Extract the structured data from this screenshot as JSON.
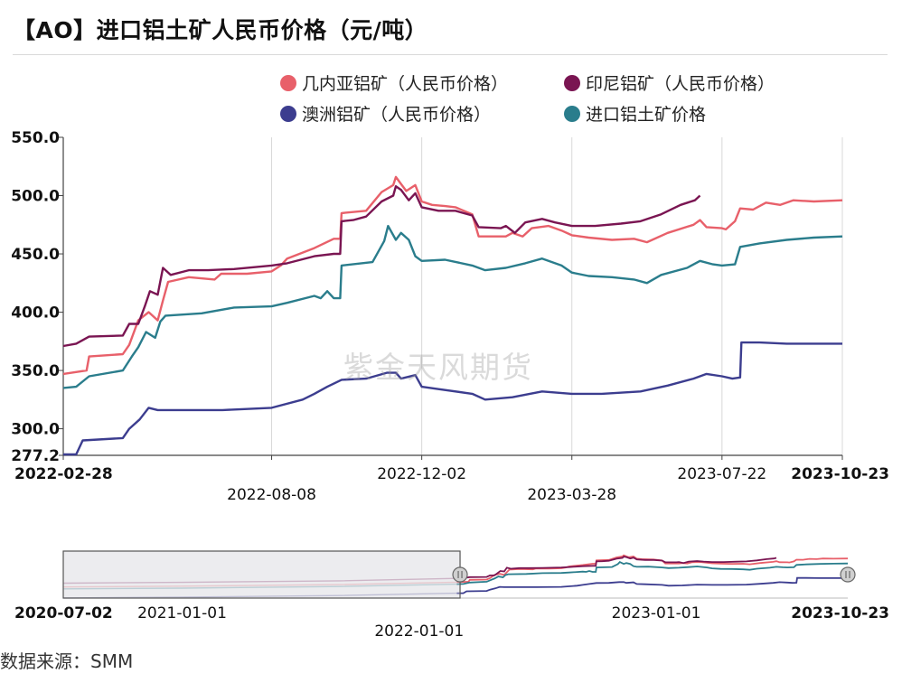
{
  "title": "【AO】进口铝土矿人民币价格（元/吨）",
  "watermark": "紫金天风期货",
  "source": "数据来源：SMM",
  "colors": {
    "guinea": "#e8606a",
    "indonesia": "#7a1552",
    "australia": "#3c3d8f",
    "import": "#2a7d8c",
    "grid": "#d8d8d8",
    "navigator_border": "#555555"
  },
  "legend": [
    {
      "name": "几内亚铝矿（人民币价格）",
      "color": "#e8606a"
    },
    {
      "name": "印尼铝矿（人民币价格）",
      "color": "#7a1552"
    },
    {
      "name": "澳洲铝矿（人民币价格）",
      "color": "#3c3d8f"
    },
    {
      "name": "进口铝土矿价格",
      "color": "#2a7d8c"
    }
  ],
  "chart_data": {
    "type": "line",
    "title": "【AO】进口铝土矿人民币价格（元/吨）",
    "xlabel": "",
    "ylabel": "",
    "x_range": [
      "2022-02-28",
      "2023-10-23"
    ],
    "ylim": [
      277.2,
      550.0
    ],
    "y_ticks": [
      "550.0",
      "500.0",
      "450.0",
      "400.0",
      "350.0",
      "300.0",
      "277.2"
    ],
    "x_ticks_row1": [
      "2022-02-28",
      "2022-12-02",
      "2023-07-22",
      "2023-10-23"
    ],
    "x_ticks_row2": [
      "2022-08-08",
      "2023-03-28"
    ],
    "grid": "vertical",
    "legend_position": "top",
    "series": [
      {
        "name": "几内亚铝矿（人民币价格）",
        "color": "#e8606a",
        "points": [
          [
            "2022-02-28",
            347
          ],
          [
            "2022-03-18",
            350
          ],
          [
            "2022-03-20",
            362
          ],
          [
            "2022-04-15",
            364
          ],
          [
            "2022-04-20",
            372
          ],
          [
            "2022-04-27",
            393
          ],
          [
            "2022-05-05",
            400
          ],
          [
            "2022-05-12",
            393
          ],
          [
            "2022-05-16",
            410
          ],
          [
            "2022-05-20",
            426
          ],
          [
            "2022-06-05",
            430
          ],
          [
            "2022-06-25",
            428
          ],
          [
            "2022-06-30",
            433
          ],
          [
            "2022-07-20",
            433
          ],
          [
            "2022-08-08",
            435
          ],
          [
            "2022-08-15",
            440
          ],
          [
            "2022-08-20",
            446
          ],
          [
            "2022-09-10",
            455
          ],
          [
            "2022-09-25",
            463
          ],
          [
            "2022-09-30",
            463
          ],
          [
            "2022-10-01",
            485
          ],
          [
            "2022-10-20",
            487
          ],
          [
            "2022-11-01",
            503
          ],
          [
            "2022-11-10",
            509
          ],
          [
            "2022-11-12",
            516
          ],
          [
            "2022-11-16",
            510
          ],
          [
            "2022-11-20",
            504
          ],
          [
            "2022-11-27",
            509
          ],
          [
            "2022-12-02",
            495
          ],
          [
            "2022-12-10",
            492
          ],
          [
            "2022-12-20",
            491
          ],
          [
            "2022-12-28",
            490
          ],
          [
            "2023-01-10",
            484
          ],
          [
            "2023-01-15",
            465
          ],
          [
            "2023-02-05",
            465
          ],
          [
            "2023-02-10",
            468
          ],
          [
            "2023-02-18",
            465
          ],
          [
            "2023-02-25",
            472
          ],
          [
            "2023-03-10",
            474
          ],
          [
            "2023-03-20",
            470
          ],
          [
            "2023-03-28",
            466
          ],
          [
            "2023-04-10",
            464
          ],
          [
            "2023-04-28",
            462
          ],
          [
            "2023-05-15",
            463
          ],
          [
            "2023-05-25",
            460
          ],
          [
            "2023-06-10",
            468
          ],
          [
            "2023-06-30",
            475
          ],
          [
            "2023-07-05",
            479
          ],
          [
            "2023-07-10",
            473
          ],
          [
            "2023-07-22",
            472
          ],
          [
            "2023-07-25",
            471
          ],
          [
            "2023-08-01",
            478
          ],
          [
            "2023-08-05",
            489
          ],
          [
            "2023-08-15",
            488
          ],
          [
            "2023-08-25",
            494
          ],
          [
            "2023-09-05",
            492
          ],
          [
            "2023-09-15",
            496
          ],
          [
            "2023-10-01",
            495
          ],
          [
            "2023-10-23",
            496
          ]
        ]
      },
      {
        "name": "印尼铝矿（人民币价格）",
        "color": "#7a1552",
        "points": [
          [
            "2022-02-28",
            371
          ],
          [
            "2022-03-10",
            373
          ],
          [
            "2022-03-20",
            379
          ],
          [
            "2022-04-15",
            380
          ],
          [
            "2022-04-20",
            390
          ],
          [
            "2022-04-27",
            390
          ],
          [
            "2022-05-02",
            405
          ],
          [
            "2022-05-06",
            418
          ],
          [
            "2022-05-12",
            415
          ],
          [
            "2022-05-16",
            438
          ],
          [
            "2022-05-22",
            432
          ],
          [
            "2022-06-05",
            436
          ],
          [
            "2022-06-20",
            436
          ],
          [
            "2022-07-10",
            437
          ],
          [
            "2022-08-08",
            440
          ],
          [
            "2022-08-20",
            442
          ],
          [
            "2022-09-10",
            448
          ],
          [
            "2022-09-25",
            450
          ],
          [
            "2022-09-30",
            450
          ],
          [
            "2022-10-01",
            478
          ],
          [
            "2022-10-10",
            479
          ],
          [
            "2022-10-20",
            482
          ],
          [
            "2022-11-01",
            495
          ],
          [
            "2022-11-10",
            500
          ],
          [
            "2022-11-12",
            508
          ],
          [
            "2022-11-16",
            505
          ],
          [
            "2022-11-22",
            496
          ],
          [
            "2022-11-27",
            502
          ],
          [
            "2022-12-02",
            490
          ],
          [
            "2022-12-15",
            487
          ],
          [
            "2022-12-28",
            487
          ],
          [
            "2023-01-10",
            483
          ],
          [
            "2023-01-15",
            473
          ],
          [
            "2023-02-01",
            472
          ],
          [
            "2023-02-05",
            474
          ],
          [
            "2023-02-12",
            468
          ],
          [
            "2023-02-20",
            477
          ],
          [
            "2023-03-05",
            480
          ],
          [
            "2023-03-15",
            477
          ],
          [
            "2023-03-28",
            474
          ],
          [
            "2023-04-15",
            474
          ],
          [
            "2023-05-05",
            476
          ],
          [
            "2023-05-20",
            478
          ],
          [
            "2023-06-05",
            484
          ],
          [
            "2023-06-20",
            492
          ],
          [
            "2023-07-01",
            496
          ],
          [
            "2023-07-05",
            500
          ]
        ]
      },
      {
        "name": "进口铝土矿价格",
        "color": "#2a7d8c",
        "points": [
          [
            "2022-02-28",
            335
          ],
          [
            "2022-03-10",
            336
          ],
          [
            "2022-03-20",
            345
          ],
          [
            "2022-04-15",
            350
          ],
          [
            "2022-04-22",
            362
          ],
          [
            "2022-04-27",
            370
          ],
          [
            "2022-05-03",
            383
          ],
          [
            "2022-05-10",
            378
          ],
          [
            "2022-05-14",
            392
          ],
          [
            "2022-05-18",
            397
          ],
          [
            "2022-06-15",
            399
          ],
          [
            "2022-07-10",
            404
          ],
          [
            "2022-08-08",
            405
          ],
          [
            "2022-08-20",
            408
          ],
          [
            "2022-09-10",
            414
          ],
          [
            "2022-09-15",
            412
          ],
          [
            "2022-09-20",
            418
          ],
          [
            "2022-09-25",
            412
          ],
          [
            "2022-09-30",
            412
          ],
          [
            "2022-10-01",
            440
          ],
          [
            "2022-10-25",
            443
          ],
          [
            "2022-11-03",
            461
          ],
          [
            "2022-11-06",
            474
          ],
          [
            "2022-11-12",
            462
          ],
          [
            "2022-11-16",
            468
          ],
          [
            "2022-11-22",
            462
          ],
          [
            "2022-11-27",
            448
          ],
          [
            "2022-12-02",
            444
          ],
          [
            "2022-12-20",
            445
          ],
          [
            "2023-01-10",
            440
          ],
          [
            "2023-01-20",
            436
          ],
          [
            "2023-02-05",
            438
          ],
          [
            "2023-02-20",
            442
          ],
          [
            "2023-03-05",
            446
          ],
          [
            "2023-03-20",
            440
          ],
          [
            "2023-03-28",
            434
          ],
          [
            "2023-04-10",
            431
          ],
          [
            "2023-04-28",
            430
          ],
          [
            "2023-05-15",
            428
          ],
          [
            "2023-05-25",
            425
          ],
          [
            "2023-06-05",
            432
          ],
          [
            "2023-06-25",
            438
          ],
          [
            "2023-07-05",
            444
          ],
          [
            "2023-07-15",
            441
          ],
          [
            "2023-07-22",
            440
          ],
          [
            "2023-08-01",
            441
          ],
          [
            "2023-08-05",
            456
          ],
          [
            "2023-08-20",
            459
          ],
          [
            "2023-09-10",
            462
          ],
          [
            "2023-10-01",
            464
          ],
          [
            "2023-10-23",
            465
          ]
        ]
      },
      {
        "name": "澳洲铝矿（人民币价格）",
        "color": "#3c3d8f",
        "points": [
          [
            "2022-02-28",
            278
          ],
          [
            "2022-03-10",
            278
          ],
          [
            "2022-03-15",
            290
          ],
          [
            "2022-04-15",
            292
          ],
          [
            "2022-04-20",
            300
          ],
          [
            "2022-04-28",
            308
          ],
          [
            "2022-05-05",
            318
          ],
          [
            "2022-05-12",
            316
          ],
          [
            "2022-06-01",
            316
          ],
          [
            "2022-07-01",
            316
          ],
          [
            "2022-08-08",
            318
          ],
          [
            "2022-09-01",
            325
          ],
          [
            "2022-09-10",
            330
          ],
          [
            "2022-09-20",
            336
          ],
          [
            "2022-10-01",
            342
          ],
          [
            "2022-10-20",
            343
          ],
          [
            "2022-11-05",
            348
          ],
          [
            "2022-11-12",
            348
          ],
          [
            "2022-11-16",
            343
          ],
          [
            "2022-11-27",
            346
          ],
          [
            "2022-12-02",
            336
          ],
          [
            "2022-12-15",
            334
          ],
          [
            "2023-01-10",
            330
          ],
          [
            "2023-01-20",
            325
          ],
          [
            "2023-02-10",
            327
          ],
          [
            "2023-03-05",
            332
          ],
          [
            "2023-03-28",
            330
          ],
          [
            "2023-04-20",
            330
          ],
          [
            "2023-05-20",
            332
          ],
          [
            "2023-06-10",
            337
          ],
          [
            "2023-06-30",
            343
          ],
          [
            "2023-07-10",
            347
          ],
          [
            "2023-07-22",
            345
          ],
          [
            "2023-07-30",
            343
          ],
          [
            "2023-08-05",
            344
          ],
          [
            "2023-08-06",
            374
          ],
          [
            "2023-08-20",
            374
          ],
          [
            "2023-09-10",
            373
          ],
          [
            "2023-10-23",
            373
          ]
        ]
      }
    ]
  },
  "navigator": {
    "labels_row1": [
      "2020-07-02",
      "2021-01-01",
      "2023-01-01",
      "2023-10-23"
    ],
    "labels_row2": [
      "2022-01-01"
    ]
  }
}
